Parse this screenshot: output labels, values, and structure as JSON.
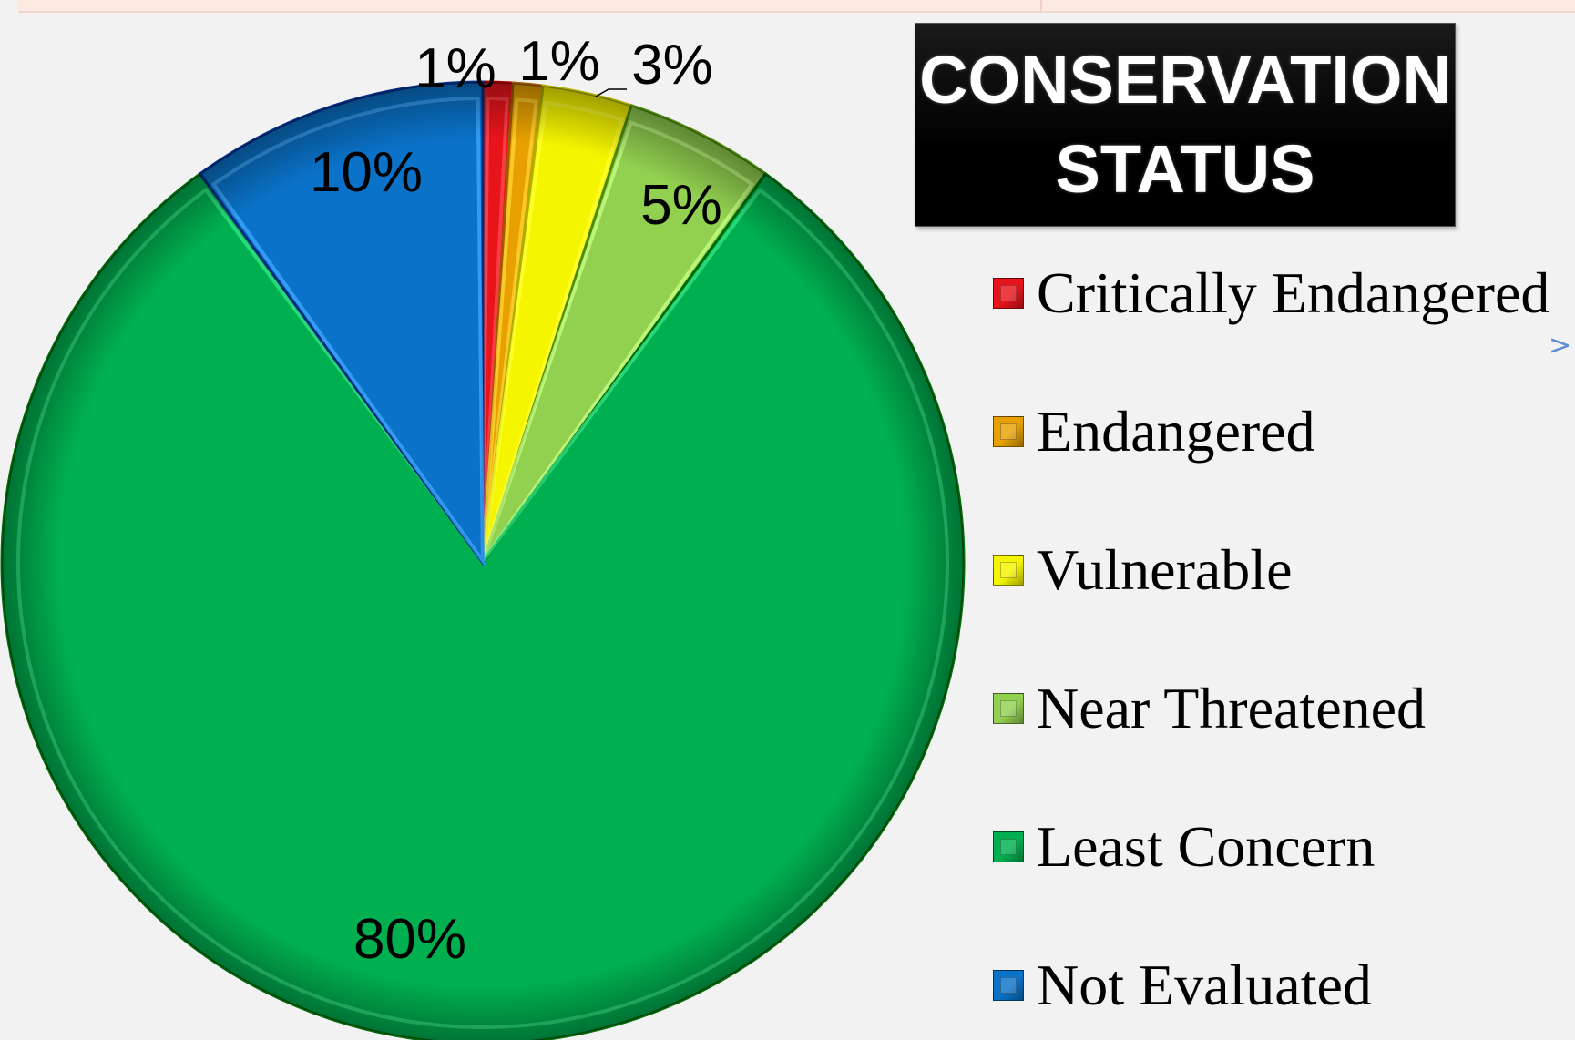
{
  "title": {
    "line1": "CONSERVATION",
    "line2": "STATUS"
  },
  "chart_data": {
    "type": "pie",
    "categories": [
      "Critically Endangered",
      "Endangered",
      "Vulnerable",
      "Near Threatened",
      "Least Concern",
      "Not Evaluated"
    ],
    "values": [
      1,
      1,
      3,
      5,
      80,
      10
    ],
    "labels": [
      "1%",
      "1%",
      "3%",
      "5%",
      "80%",
      "10%"
    ],
    "colors": [
      "#e8141b",
      "#e8a000",
      "#f5f500",
      "#92d050",
      "#00b050",
      "#0a72c8"
    ],
    "legend_position": "right"
  },
  "legend": {
    "items": [
      {
        "label": "Critically Endangered",
        "color": "#e8141b"
      },
      {
        "label": "Endangered",
        "color": "#e8a000"
      },
      {
        "label": "Vulnerable",
        "color": "#f5f500"
      },
      {
        "label": "Near Threatened",
        "color": "#92d050"
      },
      {
        "label": "Least Concern",
        "color": "#00b050"
      },
      {
        "label": "Not Evaluated",
        "color": "#0a72c8"
      }
    ]
  },
  "ui": {
    "chevron_icon": ">"
  }
}
